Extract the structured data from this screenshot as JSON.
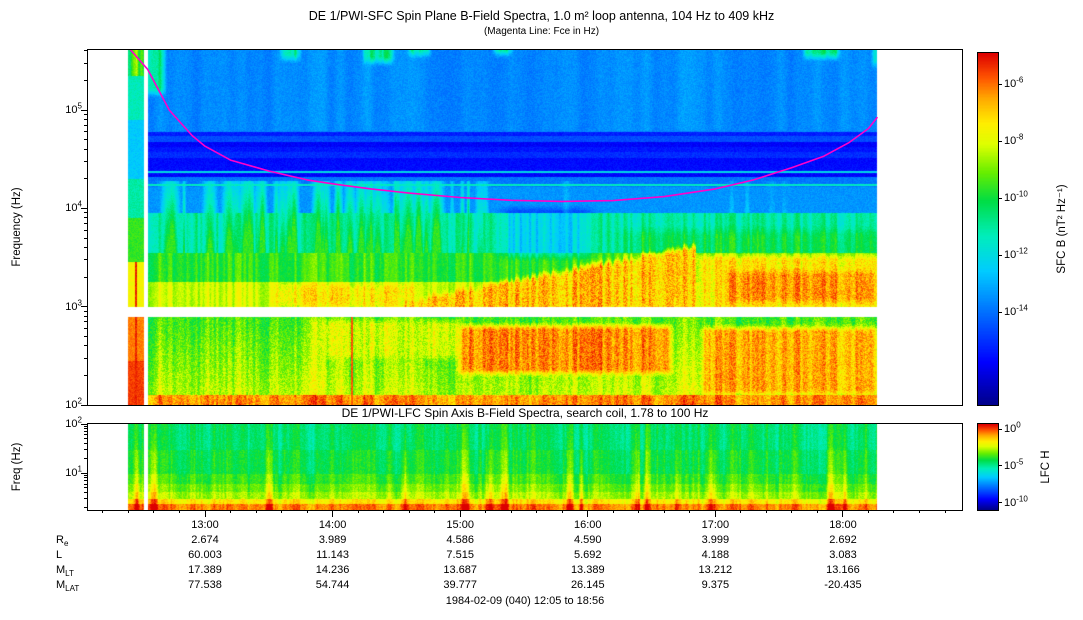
{
  "figure": {
    "caption": "1984-02-09 (040) 12:05 to 18:56",
    "background": "#ffffff"
  },
  "colors": {
    "fce_line": "#ff00cc",
    "axis": "#000000",
    "no_data": "#ffffff",
    "colormap": [
      [
        0.0,
        "#00008b"
      ],
      [
        0.12,
        "#0000ff"
      ],
      [
        0.25,
        "#0066ff"
      ],
      [
        0.38,
        "#00ccff"
      ],
      [
        0.48,
        "#00eebb"
      ],
      [
        0.58,
        "#00dd44"
      ],
      [
        0.66,
        "#66ee00"
      ],
      [
        0.74,
        "#ddff00"
      ],
      [
        0.8,
        "#ffee00"
      ],
      [
        0.87,
        "#ffaa00"
      ],
      [
        0.93,
        "#ff5500"
      ],
      [
        1.0,
        "#dd0000"
      ]
    ]
  },
  "time_axis": {
    "xlim_hours": [
      12.083,
      18.933
    ],
    "tick_hours": [
      13,
      14,
      15,
      16,
      17,
      18
    ],
    "tick_labels": [
      "13:00",
      "14:00",
      "15:00",
      "16:00",
      "17:00",
      "18:00"
    ]
  },
  "ephemeris": {
    "rows": [
      {
        "base": "R",
        "sub": "e",
        "values": [
          "2.674",
          "3.989",
          "4.586",
          "4.590",
          "3.999",
          "2.692"
        ]
      },
      {
        "base": "L",
        "sub": "",
        "values": [
          "60.003",
          "11.143",
          "7.515",
          "5.692",
          "4.188",
          "3.083"
        ]
      },
      {
        "base": "M",
        "sub": "LT",
        "values": [
          "17.389",
          "14.236",
          "13.687",
          "13.389",
          "13.212",
          "13.166"
        ]
      },
      {
        "base": "M",
        "sub": "LAT",
        "values": [
          "77.538",
          "54.744",
          "39.777",
          "26.145",
          "9.375",
          "-20.435"
        ]
      }
    ]
  },
  "chart_data": [
    {
      "type": "heatmap",
      "name": "SFC spin-plane B-field spectrogram",
      "title": "DE 1/PWI-SFC  Spin Plane B-Field Spectra, 1.0 m² loop antenna, 104 Hz to 409 kHz",
      "subtitle": "(Magenta Line: Fce in Hz)",
      "ylabel": "Frequency (Hz)",
      "y_scale": "log",
      "ylim_hz": [
        100,
        409000
      ],
      "y_tick_exponents": [
        5,
        4,
        3,
        2
      ],
      "xlim_hours": [
        12.083,
        18.933
      ],
      "x_tick_hours": [
        13,
        14,
        15,
        16,
        17,
        18
      ],
      "x_tick_labels": [
        "13:00",
        "14:00",
        "15:00",
        "16:00",
        "17:00",
        "18:00"
      ],
      "data_span_hours": [
        12.4,
        18.27
      ],
      "start_stripe_hours": [
        12.4,
        12.52
      ],
      "no_data_gap_hz": [
        790,
        1000
      ],
      "colorbar": {
        "label": "SFC B (nT² Hz⁻¹)",
        "tick_exponents": [
          -6,
          -8,
          -10,
          -12,
          -14
        ],
        "range_exponents": [
          -17.25,
          -4.9
        ]
      },
      "fce_line_hz": [
        [
          12.41,
          420000
        ],
        [
          12.55,
          260000
        ],
        [
          12.72,
          100000
        ],
        [
          12.9,
          55000
        ],
        [
          13.0,
          43000
        ],
        [
          13.2,
          31000
        ],
        [
          13.5,
          24000
        ],
        [
          13.8,
          19500
        ],
        [
          14.0,
          17800
        ],
        [
          14.3,
          15800
        ],
        [
          14.6,
          14300
        ],
        [
          15.0,
          12900
        ],
        [
          15.4,
          12100
        ],
        [
          15.8,
          11800
        ],
        [
          16.2,
          12000
        ],
        [
          16.6,
          13200
        ],
        [
          17.0,
          15800
        ],
        [
          17.3,
          19500
        ],
        [
          17.6,
          26000
        ],
        [
          17.85,
          34000
        ],
        [
          18.05,
          47000
        ],
        [
          18.2,
          65000
        ],
        [
          18.27,
          85000
        ]
      ],
      "intensity_bands_hz": [
        {
          "f": [
            100,
            125
          ],
          "v": 0.8
        },
        {
          "f": [
            125,
            790
          ],
          "v": 0.64
        },
        {
          "f": [
            1000,
            1800
          ],
          "v": 0.74
        },
        {
          "f": [
            1800,
            3500
          ],
          "v": 0.62
        },
        {
          "f": [
            3500,
            8900
          ],
          "v": 0.5
        },
        {
          "f": [
            8900,
            16500
          ],
          "v": 0.31
        },
        {
          "f": [
            16500,
            21000
          ],
          "v": 0.27
        },
        {
          "f": [
            21000,
            60000
          ],
          "v": 0.17
        },
        {
          "f": [
            60000,
            409000
          ],
          "v": 0.3
        }
      ],
      "features": [
        {
          "kind": "rising_band",
          "t": [
            14.55,
            16.85
          ],
          "f_edge": [
            1120,
            4200
          ],
          "f_base": 1000,
          "v": 0.84
        },
        {
          "kind": "band",
          "t": [
            16.85,
            18.27
          ],
          "f": [
            1000,
            3400
          ],
          "v": 0.8
        },
        {
          "kind": "blob",
          "t": [
            17.1,
            18.25
          ],
          "f": [
            1120,
            2300
          ],
          "v": 0.88
        },
        {
          "kind": "blob",
          "t": [
            13.55,
            14.65
          ],
          "f": [
            1000,
            1650
          ],
          "v": 0.8
        },
        {
          "kind": "blob",
          "t": [
            15.0,
            16.65
          ],
          "f": [
            210,
            640
          ],
          "v": 0.89
        },
        {
          "kind": "blob",
          "t": [
            16.9,
            18.27
          ],
          "f": [
            130,
            610
          ],
          "v": 0.86
        },
        {
          "kind": "blob",
          "t": [
            13.85,
            15.0
          ],
          "f": [
            300,
            720
          ],
          "v": 0.74
        },
        {
          "kind": "vline",
          "t": 14.155,
          "f": [
            100,
            790
          ],
          "v": 0.93
        },
        {
          "kind": "hline",
          "f": 17200,
          "v": 0.47
        },
        {
          "kind": "hline",
          "f": 23500,
          "v": 0.42
        },
        {
          "kind": "chorus_bursts",
          "t": [
            12.56,
            15.35
          ],
          "f": [
            3500,
            19000
          ]
        },
        {
          "kind": "top_patch",
          "t": [
            12.47,
            12.68
          ],
          "f_above": 130000
        },
        {
          "kind": "top_patch",
          "t": [
            13.6,
            13.74
          ],
          "f_above": 290000
        },
        {
          "kind": "top_patch",
          "t": [
            14.25,
            14.47
          ],
          "f_above": 270000
        },
        {
          "kind": "top_patch",
          "t": [
            14.6,
            14.76
          ],
          "f_above": 320000
        },
        {
          "kind": "top_patch",
          "t": [
            15.27,
            15.4
          ],
          "f_above": 330000
        },
        {
          "kind": "top_patch",
          "t": [
            17.7,
            17.97
          ],
          "f_above": 300000
        },
        {
          "kind": "top_patch",
          "t": [
            18.24,
            18.27
          ],
          "f_above": 250000
        }
      ]
    },
    {
      "type": "heatmap",
      "name": "LFC spin-axis B-field spectrogram",
      "title": "DE 1/PWI-LFC  Spin Axis B-Field Spectra, search coil, 1.78 to 100 Hz",
      "ylabel": "Freq (Hz)",
      "y_scale": "log",
      "ylim_hz": [
        1.78,
        100
      ],
      "y_tick_exponents": [
        2,
        1
      ],
      "xlim_hours": [
        12.083,
        18.933
      ],
      "data_span_hours": [
        12.4,
        18.27
      ],
      "colorbar": {
        "label": "LFC H",
        "tick_exponents": [
          0,
          -5,
          -10
        ],
        "range_exponents": [
          -11,
          0.7
        ]
      },
      "intensity_bands_hz": [
        {
          "f": [
            1.78,
            2.4
          ],
          "v": 0.9
        },
        {
          "f": [
            2.4,
            3.0
          ],
          "v": 0.8
        },
        {
          "f": [
            3.0,
            4.2
          ],
          "v": 0.7
        },
        {
          "f": [
            4.2,
            6.0
          ],
          "v": 0.66
        },
        {
          "f": [
            6.0,
            9.5
          ],
          "v": 0.62
        },
        {
          "f": [
            9.5,
            30
          ],
          "v": 0.58
        },
        {
          "f": [
            30,
            100
          ],
          "v": 0.55
        }
      ]
    }
  ]
}
